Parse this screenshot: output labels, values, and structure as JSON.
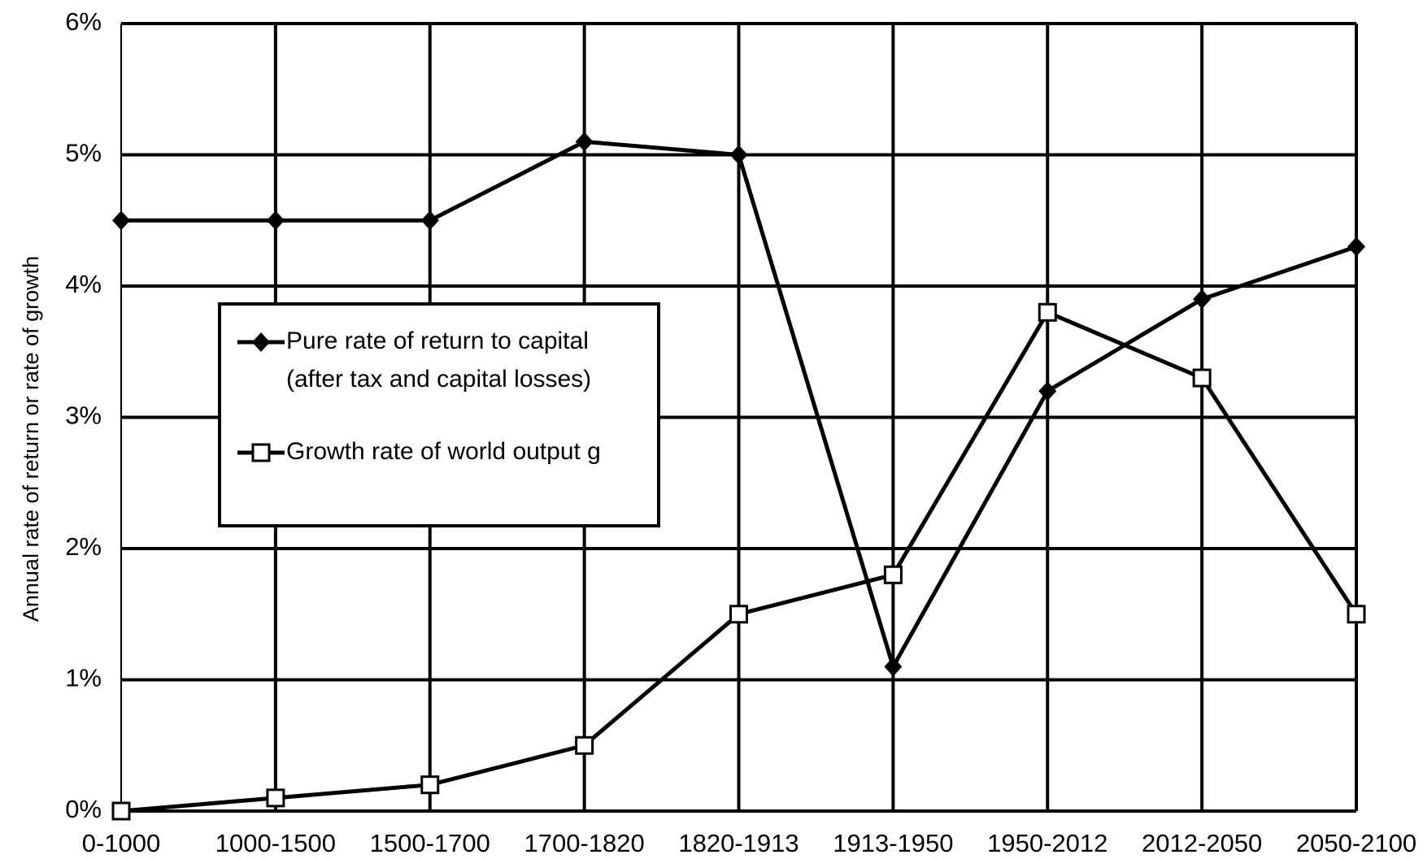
{
  "chart_data": {
    "type": "line",
    "y_axis_label": "Annual rate of return or rate of growth",
    "categories": [
      "0-1000",
      "1000-1500",
      "1500-1700",
      "1700-1820",
      "1820-1913",
      "1913-1950",
      "1950-2012",
      "2012-2050",
      "2050-2100"
    ],
    "series": [
      {
        "name": "Pure rate of return to capital (after tax and capital losses)",
        "color": "#000000",
        "marker": "diamond",
        "values": [
          4.5,
          4.5,
          4.5,
          5.1,
          5.0,
          1.1,
          3.2,
          3.9,
          4.3
        ]
      },
      {
        "name": "Growth rate of world output g",
        "color": "#000000",
        "marker": "square",
        "values": [
          0.0,
          0.1,
          0.2,
          0.5,
          1.5,
          1.8,
          3.8,
          3.3,
          1.5
        ]
      }
    ],
    "ylim": [
      0,
      6
    ],
    "yticks": [
      {
        "value": 0,
        "label": "0%"
      },
      {
        "value": 1,
        "label": "1%"
      },
      {
        "value": 2,
        "label": "2%"
      },
      {
        "value": 3,
        "label": "3%"
      },
      {
        "value": 4,
        "label": "4%"
      },
      {
        "value": 5,
        "label": "5%"
      },
      {
        "value": 6,
        "label": "6%"
      }
    ],
    "grid": true
  }
}
